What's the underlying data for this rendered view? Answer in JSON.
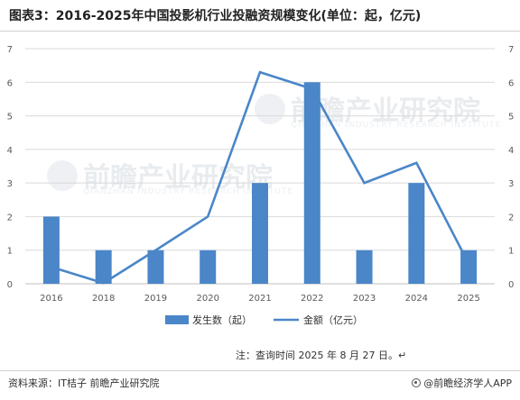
{
  "title": "图表3：2016-2025年中国投影机行业投融资规模变化(单位：起，亿元)",
  "watermark": {
    "text": "前瞻产业研究院",
    "subtext": "QIANZHAN INDUSTRY RESEARCH INSTITUTE"
  },
  "note": "注：查询时间 2025 年 8 月 27 日。↵",
  "source": "资料来源：IT桔子 前瞻产业研究院",
  "brand": "@前瞻经济学人APP",
  "colors": {
    "bar": "#4a86c8",
    "line": "#4a86c8",
    "grid": "#d9d9d9",
    "axis_text": "#595959"
  },
  "chart_data": {
    "type": "bar+line",
    "categories": [
      "2016",
      "2018",
      "2019",
      "2020",
      "2021",
      "2022",
      "2023",
      "2024",
      "2025"
    ],
    "series": [
      {
        "name": "发生数（起）",
        "type": "bar",
        "axis": "left",
        "values": [
          2,
          1,
          1,
          1,
          3,
          6,
          1,
          3,
          1
        ]
      },
      {
        "name": "金额（亿元）",
        "type": "line",
        "axis": "right",
        "values": [
          0.5,
          0.02,
          1.0,
          2.0,
          6.3,
          5.8,
          3.0,
          3.6,
          0.6
        ]
      }
    ],
    "y_left": {
      "min": 0,
      "max": 7,
      "ticks": [
        "0",
        "1",
        "2",
        "3",
        "4",
        "5",
        "6",
        "7"
      ]
    },
    "y_right": {
      "min": 0,
      "max": 7,
      "ticks": [
        "0",
        "1",
        "2",
        "3",
        "4",
        "5",
        "6",
        "7"
      ]
    },
    "grid": true,
    "legend_position": "bottom"
  }
}
